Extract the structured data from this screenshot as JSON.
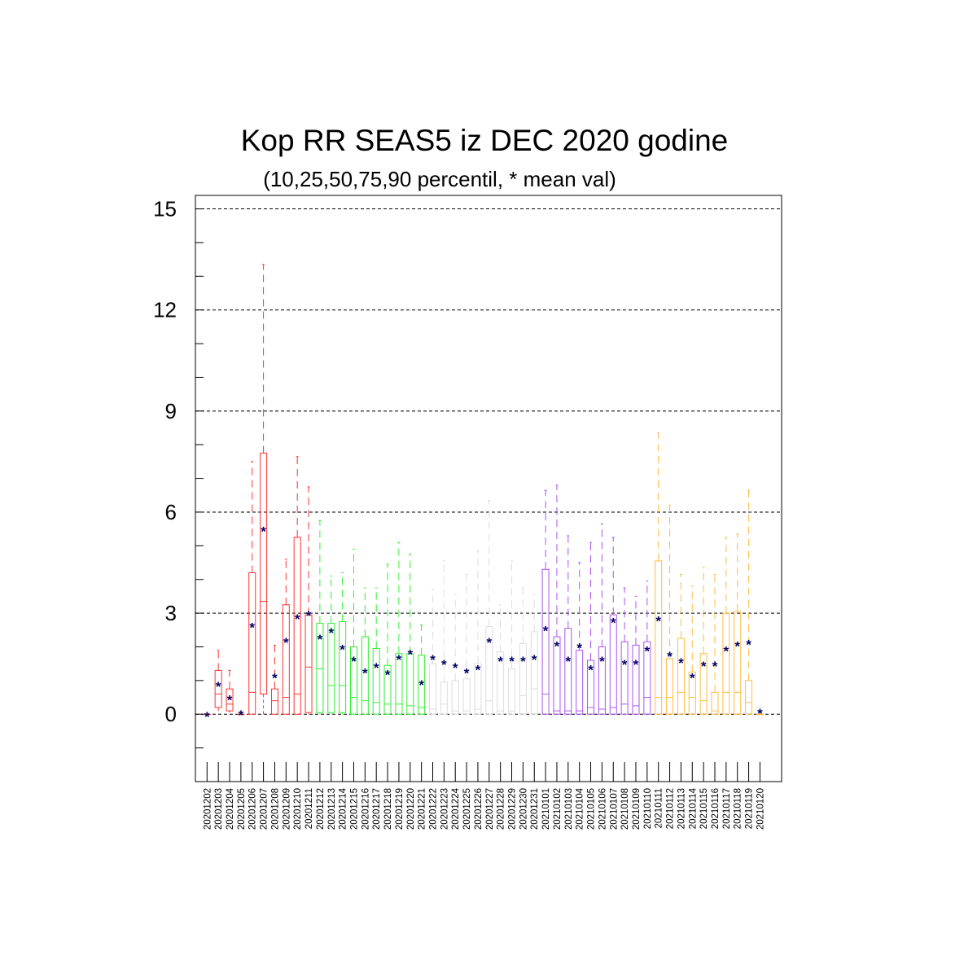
{
  "chart_data": {
    "type": "box",
    "title": "Kop RR SEAS5 iz DEC 2020 godine",
    "subtitle": "(10,25,50,75,90 percentil, * mean val)",
    "xlabel": "",
    "ylabel": "",
    "ylim": [
      -2,
      15.4
    ],
    "yticks": [
      0,
      3,
      6,
      9,
      12,
      15
    ],
    "ytick_labels": [
      "0",
      "3",
      "6",
      "9",
      "12",
      "15"
    ],
    "grid": "horizontal dashed at major ticks",
    "mean_marker": "*",
    "mean_color": "#000066",
    "categories": [
      "20201202",
      "20201203",
      "20201204",
      "20201205",
      "20201206",
      "20201207",
      "20201208",
      "20201209",
      "20201210",
      "20201211",
      "20201212",
      "20201213",
      "20201214",
      "20201215",
      "20201216",
      "20201217",
      "20201218",
      "20201219",
      "20201220",
      "20201221",
      "20201222",
      "20201223",
      "20201224",
      "20201225",
      "20201226",
      "20201227",
      "20201228",
      "20201229",
      "20201230",
      "20201231",
      "20210101",
      "20210102",
      "20210103",
      "20210104",
      "20210105",
      "20210106",
      "20210107",
      "20210108",
      "20210109",
      "20210110",
      "20210111",
      "20210112",
      "20210113",
      "20210114",
      "20210115",
      "20210116",
      "20210117",
      "20210118",
      "20210119",
      "20210120"
    ],
    "group_colors": [
      "#ff3333",
      "#33ee33",
      "#dddddd",
      "#aa55ee",
      "#ffbb44"
    ],
    "group_index": [
      0,
      0,
      0,
      0,
      0,
      0,
      0,
      0,
      0,
      0,
      1,
      1,
      1,
      1,
      1,
      1,
      1,
      1,
      1,
      1,
      2,
      2,
      2,
      2,
      2,
      2,
      2,
      2,
      2,
      2,
      3,
      3,
      3,
      3,
      3,
      3,
      3,
      3,
      3,
      3,
      4,
      4,
      4,
      4,
      4,
      4,
      4,
      4,
      4,
      4
    ],
    "p10": [
      0,
      0.1,
      0.05,
      0,
      0,
      0,
      0,
      0,
      0,
      0,
      0,
      0,
      0,
      0,
      0,
      0,
      0,
      0,
      0,
      0,
      0,
      0,
      0,
      0,
      0,
      0,
      0,
      0,
      0,
      0,
      0,
      0,
      0,
      0,
      0,
      0,
      0,
      0,
      0,
      0,
      0,
      0,
      0,
      0,
      0,
      0,
      0,
      0,
      0,
      0
    ],
    "p25": [
      0,
      0.2,
      0.1,
      0,
      0,
      0.6,
      0,
      0,
      0,
      0.05,
      0.05,
      0.05,
      0.05,
      0,
      0,
      0,
      0,
      0,
      0,
      0,
      0,
      0,
      0,
      0,
      0,
      0,
      0,
      0,
      0,
      0,
      0,
      0,
      0,
      0,
      0,
      0,
      0,
      0,
      0,
      0,
      0,
      0,
      0,
      0,
      0,
      0,
      0,
      0,
      0,
      0
    ],
    "p50": [
      0,
      0.6,
      0.3,
      0,
      0.65,
      3.35,
      0.4,
      0.5,
      0.6,
      1.4,
      1.35,
      0.85,
      0.85,
      0.5,
      0.4,
      0.35,
      0.3,
      0.3,
      0.25,
      0.2,
      0.15,
      0.3,
      0.1,
      0.1,
      0.15,
      0.4,
      0.1,
      0.1,
      0.55,
      0.75,
      0.6,
      0.1,
      0.1,
      0.1,
      0.2,
      0.15,
      0.2,
      0.3,
      0.25,
      0.5,
      0.5,
      0.5,
      0.65,
      0.5,
      0.4,
      0.1,
      0.65,
      0.65,
      0.35,
      0
    ],
    "p75": [
      0,
      1.3,
      0.75,
      0,
      4.2,
      7.75,
      0.75,
      3.25,
      5.25,
      2.95,
      2.7,
      2.7,
      2.75,
      2.0,
      2.3,
      1.95,
      1.45,
      1.8,
      1.8,
      1.75,
      1.5,
      0.95,
      1.0,
      1.05,
      1.5,
      2.6,
      1.85,
      1.35,
      2.1,
      2.45,
      4.3,
      2.3,
      2.55,
      1.9,
      1.6,
      2.0,
      2.95,
      2.15,
      2.05,
      2.15,
      4.55,
      1.65,
      2.25,
      1.25,
      1.8,
      0.65,
      3.0,
      3.05,
      1.0,
      0
    ],
    "p90": [
      0,
      1.9,
      1.3,
      0,
      7.5,
      13.35,
      2.05,
      4.6,
      7.65,
      6.75,
      5.75,
      4.1,
      4.2,
      4.9,
      3.75,
      3.75,
      4.45,
      5.1,
      4.75,
      2.65,
      3.7,
      4.55,
      3.55,
      4.15,
      4.85,
      6.35,
      3.25,
      4.55,
      3.75,
      3.55,
      6.65,
      6.8,
      5.3,
      4.5,
      5.1,
      5.65,
      5.25,
      3.75,
      3.5,
      3.95,
      8.35,
      6.2,
      4.15,
      3.8,
      4.35,
      4.15,
      5.25,
      5.35,
      6.65,
      0.1
    ],
    "mean": [
      0,
      0.9,
      0.5,
      0.05,
      2.65,
      5.5,
      1.15,
      2.2,
      2.9,
      3.0,
      2.3,
      2.5,
      2.0,
      1.65,
      1.3,
      1.45,
      1.25,
      1.7,
      1.85,
      0.95,
      1.7,
      1.55,
      1.45,
      1.3,
      1.4,
      2.2,
      1.65,
      1.65,
      1.65,
      1.7,
      2.55,
      2.1,
      1.65,
      2.05,
      1.4,
      1.65,
      2.8,
      1.55,
      1.55,
      1.95,
      2.85,
      1.8,
      1.6,
      1.15,
      1.5,
      1.5,
      1.95,
      2.1,
      2.15,
      0.1
    ]
  }
}
